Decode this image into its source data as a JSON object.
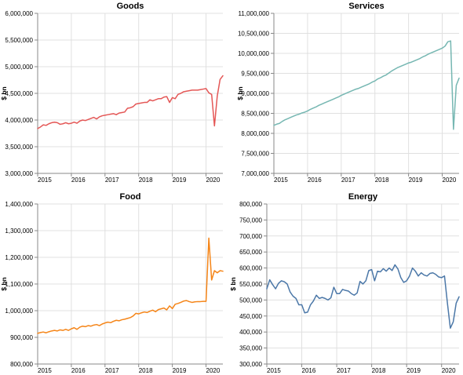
{
  "chart_data": [
    {
      "type": "line",
      "title": "Goods",
      "ylabel": "$ bn",
      "ylim": [
        3000000,
        6000000
      ],
      "yticks": [
        3000000,
        3500000,
        4000000,
        4500000,
        5000000,
        5500000,
        6000000
      ],
      "ytick_labels": [
        "3,000,000",
        "3,500,000",
        "4,000,000",
        "4,500,000",
        "5,000,000",
        "5,500,000",
        "6,000,000"
      ],
      "xlim": [
        "2015-01",
        "2020-07"
      ],
      "xtick_labels": [
        "2015",
        "2016",
        "2017",
        "2018",
        "2019",
        "2020"
      ],
      "grid": true,
      "series": [
        {
          "color": "#e45756",
          "x": [
            "2015-01",
            "2015-02",
            "2015-03",
            "2015-04",
            "2015-05",
            "2015-06",
            "2015-07",
            "2015-08",
            "2015-09",
            "2015-10",
            "2015-11",
            "2015-12",
            "2016-01",
            "2016-02",
            "2016-03",
            "2016-04",
            "2016-05",
            "2016-06",
            "2016-07",
            "2016-08",
            "2016-09",
            "2016-10",
            "2016-11",
            "2016-12",
            "2017-01",
            "2017-02",
            "2017-03",
            "2017-04",
            "2017-05",
            "2017-06",
            "2017-07",
            "2017-08",
            "2017-09",
            "2017-10",
            "2017-11",
            "2017-12",
            "2018-01",
            "2018-02",
            "2018-03",
            "2018-04",
            "2018-05",
            "2018-06",
            "2018-07",
            "2018-08",
            "2018-09",
            "2018-10",
            "2018-11",
            "2018-12",
            "2019-01",
            "2019-02",
            "2019-03",
            "2019-04",
            "2019-05",
            "2019-06",
            "2019-07",
            "2019-08",
            "2019-09",
            "2019-10",
            "2019-11",
            "2019-12",
            "2020-01",
            "2020-02",
            "2020-03",
            "2020-04",
            "2020-05",
            "2020-06",
            "2020-07"
          ],
          "values": [
            3840000,
            3870000,
            3910000,
            3900000,
            3930000,
            3950000,
            3960000,
            3950000,
            3920000,
            3930000,
            3950000,
            3930000,
            3940000,
            3960000,
            3940000,
            3980000,
            4000000,
            3990000,
            4010000,
            4030000,
            4050000,
            4020000,
            4060000,
            4080000,
            4090000,
            4100000,
            4110000,
            4120000,
            4100000,
            4130000,
            4140000,
            4150000,
            4220000,
            4230000,
            4250000,
            4300000,
            4310000,
            4320000,
            4330000,
            4330000,
            4380000,
            4360000,
            4380000,
            4400000,
            4400000,
            4430000,
            4440000,
            4330000,
            4420000,
            4400000,
            4480000,
            4500000,
            4530000,
            4540000,
            4550000,
            4560000,
            4560000,
            4560000,
            4570000,
            4580000,
            4590000,
            4510000,
            4480000,
            3890000,
            4450000,
            4760000,
            4830000
          ]
        }
      ]
    },
    {
      "type": "line",
      "title": "Services",
      "ylabel": "$ bn",
      "ylim": [
        7000000,
        11000000
      ],
      "yticks": [
        7000000,
        7500000,
        8000000,
        8500000,
        9000000,
        9500000,
        10000000,
        10500000,
        11000000
      ],
      "ytick_labels": [
        "7,000,000",
        "7,500,000",
        "8,000,000",
        "8,500,000",
        "9,000,000",
        "9,500,000",
        "10,000,000",
        "10,500,000",
        "11,000,000"
      ],
      "xlim": [
        "2015-01",
        "2020-07"
      ],
      "xtick_labels": [
        "2015",
        "2016",
        "2017",
        "2018",
        "2019",
        "2020"
      ],
      "grid": true,
      "series": [
        {
          "color": "#76b7b2",
          "x": [
            "2015-01",
            "2015-02",
            "2015-03",
            "2015-04",
            "2015-05",
            "2015-06",
            "2015-07",
            "2015-08",
            "2015-09",
            "2015-10",
            "2015-11",
            "2015-12",
            "2016-01",
            "2016-02",
            "2016-03",
            "2016-04",
            "2016-05",
            "2016-06",
            "2016-07",
            "2016-08",
            "2016-09",
            "2016-10",
            "2016-11",
            "2016-12",
            "2017-01",
            "2017-02",
            "2017-03",
            "2017-04",
            "2017-05",
            "2017-06",
            "2017-07",
            "2017-08",
            "2017-09",
            "2017-10",
            "2017-11",
            "2017-12",
            "2018-01",
            "2018-02",
            "2018-03",
            "2018-04",
            "2018-05",
            "2018-06",
            "2018-07",
            "2018-08",
            "2018-09",
            "2018-10",
            "2018-11",
            "2018-12",
            "2019-01",
            "2019-02",
            "2019-03",
            "2019-04",
            "2019-05",
            "2019-06",
            "2019-07",
            "2019-08",
            "2019-09",
            "2019-10",
            "2019-11",
            "2019-12",
            "2020-01",
            "2020-02",
            "2020-03",
            "2020-04",
            "2020-05",
            "2020-06",
            "2020-07"
          ],
          "values": [
            8200000,
            8230000,
            8250000,
            8300000,
            8340000,
            8370000,
            8400000,
            8430000,
            8460000,
            8480000,
            8510000,
            8530000,
            8560000,
            8600000,
            8630000,
            8660000,
            8700000,
            8730000,
            8760000,
            8790000,
            8820000,
            8850000,
            8880000,
            8910000,
            8950000,
            8980000,
            9010000,
            9040000,
            9070000,
            9100000,
            9120000,
            9150000,
            9180000,
            9210000,
            9240000,
            9280000,
            9310000,
            9360000,
            9390000,
            9430000,
            9460000,
            9510000,
            9560000,
            9600000,
            9640000,
            9670000,
            9700000,
            9730000,
            9760000,
            9780000,
            9810000,
            9840000,
            9870000,
            9910000,
            9940000,
            9980000,
            10010000,
            10040000,
            10070000,
            10100000,
            10130000,
            10180000,
            10290000,
            10310000,
            8100000,
            9200000,
            9380000
          ]
        }
      ]
    },
    {
      "type": "line",
      "title": "Food",
      "ylabel": "$ bn",
      "ylim": [
        800000,
        1400000
      ],
      "yticks": [
        800000,
        900000,
        1000000,
        1100000,
        1200000,
        1300000,
        1400000
      ],
      "ytick_labels": [
        "800,000",
        "900,000",
        "1,000,000",
        "1,100,000",
        "1,200,000",
        "1,300,000",
        "1,400,000"
      ],
      "xlim": [
        "2015-01",
        "2020-07"
      ],
      "xtick_labels": [
        "2015",
        "2016",
        "2017",
        "2018",
        "2019",
        "2020"
      ],
      "grid": true,
      "series": [
        {
          "color": "#f58518",
          "x": [
            "2015-01",
            "2015-02",
            "2015-03",
            "2015-04",
            "2015-05",
            "2015-06",
            "2015-07",
            "2015-08",
            "2015-09",
            "2015-10",
            "2015-11",
            "2015-12",
            "2016-01",
            "2016-02",
            "2016-03",
            "2016-04",
            "2016-05",
            "2016-06",
            "2016-07",
            "2016-08",
            "2016-09",
            "2016-10",
            "2016-11",
            "2016-12",
            "2017-01",
            "2017-02",
            "2017-03",
            "2017-04",
            "2017-05",
            "2017-06",
            "2017-07",
            "2017-08",
            "2017-09",
            "2017-10",
            "2017-11",
            "2017-12",
            "2018-01",
            "2018-02",
            "2018-03",
            "2018-04",
            "2018-05",
            "2018-06",
            "2018-07",
            "2018-08",
            "2018-09",
            "2018-10",
            "2018-11",
            "2018-12",
            "2019-01",
            "2019-02",
            "2019-03",
            "2019-04",
            "2019-05",
            "2019-06",
            "2019-07",
            "2019-08",
            "2019-09",
            "2019-10",
            "2019-11",
            "2019-12",
            "2020-01",
            "2020-02",
            "2020-03",
            "2020-04",
            "2020-05",
            "2020-06",
            "2020-07"
          ],
          "values": [
            915000,
            918000,
            920000,
            917000,
            921000,
            924000,
            926000,
            924000,
            928000,
            926000,
            930000,
            926000,
            932000,
            936000,
            930000,
            938000,
            942000,
            940000,
            944000,
            942000,
            946000,
            948000,
            944000,
            950000,
            954000,
            957000,
            955000,
            960000,
            964000,
            962000,
            966000,
            968000,
            971000,
            974000,
            980000,
            990000,
            988000,
            992000,
            995000,
            993000,
            998000,
            1002000,
            996000,
            1004000,
            1007000,
            1010000,
            1003000,
            1018000,
            1008000,
            1024000,
            1027000,
            1031000,
            1036000,
            1038000,
            1034000,
            1031000,
            1033000,
            1034000,
            1034000,
            1035000,
            1035000,
            1272000,
            1115000,
            1150000,
            1142000,
            1150000,
            1148000
          ]
        }
      ]
    },
    {
      "type": "line",
      "title": "Energy",
      "ylabel": "$ bn",
      "ylim": [
        300000,
        800000
      ],
      "yticks": [
        300000,
        350000,
        400000,
        450000,
        500000,
        550000,
        600000,
        650000,
        700000,
        750000,
        800000
      ],
      "ytick_labels": [
        "300,000",
        "350,000",
        "400,000",
        "450,000",
        "500,000",
        "550,000",
        "600,000",
        "650,000",
        "700,000",
        "750,000",
        "800,000"
      ],
      "xlim": [
        "2015-01",
        "2020-07"
      ],
      "xtick_labels": [
        "2015",
        "2016",
        "2017",
        "2018",
        "2019",
        "2020"
      ],
      "grid": true,
      "series": [
        {
          "color": "#4c78a8",
          "x": [
            "2015-01",
            "2015-02",
            "2015-03",
            "2015-04",
            "2015-05",
            "2015-06",
            "2015-07",
            "2015-08",
            "2015-09",
            "2015-10",
            "2015-11",
            "2015-12",
            "2016-01",
            "2016-02",
            "2016-03",
            "2016-04",
            "2016-05",
            "2016-06",
            "2016-07",
            "2016-08",
            "2016-09",
            "2016-10",
            "2016-11",
            "2016-12",
            "2017-01",
            "2017-02",
            "2017-03",
            "2017-04",
            "2017-05",
            "2017-06",
            "2017-07",
            "2017-08",
            "2017-09",
            "2017-10",
            "2017-11",
            "2017-12",
            "2018-01",
            "2018-02",
            "2018-03",
            "2018-04",
            "2018-05",
            "2018-06",
            "2018-07",
            "2018-08",
            "2018-09",
            "2018-10",
            "2018-11",
            "2018-12",
            "2019-01",
            "2019-02",
            "2019-03",
            "2019-04",
            "2019-05",
            "2019-06",
            "2019-07",
            "2019-08",
            "2019-09",
            "2019-10",
            "2019-11",
            "2019-12",
            "2020-01",
            "2020-02",
            "2020-03",
            "2020-04",
            "2020-05",
            "2020-06",
            "2020-07"
          ],
          "values": [
            535000,
            563000,
            548000,
            535000,
            552000,
            560000,
            557000,
            550000,
            525000,
            512000,
            505000,
            485000,
            485000,
            460000,
            462000,
            485000,
            497000,
            515000,
            505000,
            508000,
            505000,
            500000,
            507000,
            540000,
            520000,
            520000,
            533000,
            530000,
            528000,
            520000,
            515000,
            522000,
            558000,
            550000,
            560000,
            592000,
            595000,
            560000,
            590000,
            588000,
            598000,
            590000,
            600000,
            592000,
            610000,
            597000,
            570000,
            555000,
            560000,
            575000,
            600000,
            590000,
            575000,
            585000,
            578000,
            575000,
            583000,
            585000,
            580000,
            572000,
            570000,
            575000,
            490000,
            412000,
            432000,
            490000,
            510000
          ]
        }
      ]
    }
  ]
}
